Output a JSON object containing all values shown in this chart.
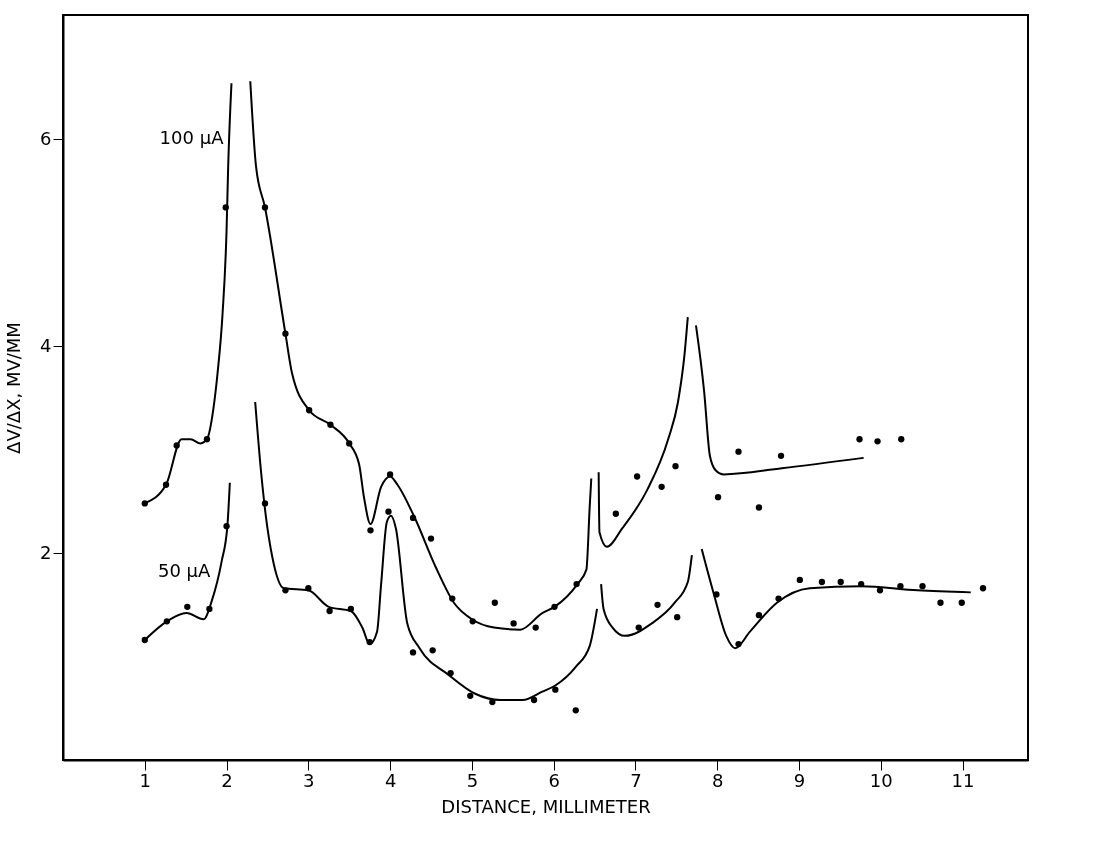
{
  "chart_data": {
    "type": "scatter",
    "xlabel": "DISTANCE, MILLIMETER",
    "ylabel": "ΔV/ΔX, MV/MM",
    "xlim": [
      0,
      11.8
    ],
    "xticks": [
      1,
      2,
      3,
      4,
      5,
      6,
      7,
      8,
      9,
      10,
      11
    ],
    "ylim": [
      0,
      7.2
    ],
    "yticks": [
      2,
      4,
      6
    ],
    "grid": false,
    "annotations": [
      {
        "text": "100 µA",
        "x": 2.06,
        "y": 6.0
      },
      {
        "text": "50 µA",
        "x": 1.9,
        "y": 1.82
      }
    ],
    "series": [
      {
        "marker": "circle",
        "color": "#000000",
        "x": [
          1.0,
          1.26,
          1.39,
          1.76,
          1.99,
          2.47,
          2.72,
          3.01,
          3.27,
          3.5,
          3.76,
          4.0,
          4.28,
          4.5,
          4.76,
          5.01,
          5.28,
          5.51,
          5.78,
          6.01,
          6.28,
          6.76,
          7.02,
          7.32,
          7.49,
          8.01,
          8.26,
          8.51,
          8.78,
          9.74,
          9.96,
          10.25
        ],
        "values": [
          2.48,
          2.66,
          3.04,
          3.1,
          5.34,
          5.34,
          4.12,
          3.38,
          3.24,
          3.06,
          2.22,
          2.76,
          2.34,
          2.14,
          1.56,
          1.34,
          1.52,
          1.32,
          1.28,
          1.48,
          1.7,
          2.38,
          2.74,
          2.64,
          2.84,
          2.54,
          2.98,
          2.44,
          2.94,
          3.1,
          3.08,
          3.1
        ]
      },
      {
        "marker": "circle",
        "color": "#000000",
        "x": [
          1.0,
          1.27,
          1.52,
          1.79,
          2.0,
          2.47,
          2.72,
          3.0,
          3.26,
          3.52,
          3.75,
          3.98,
          4.28,
          4.52,
          4.74,
          4.98,
          5.25,
          5.76,
          6.02,
          6.27,
          7.04,
          7.27,
          7.51,
          7.99,
          8.26,
          8.51,
          8.75,
          9.01,
          9.28,
          9.51,
          9.76,
          9.99,
          10.24,
          10.51,
          10.73,
          10.99,
          11.25
        ],
        "values": [
          1.16,
          1.34,
          1.48,
          1.46,
          2.26,
          2.48,
          1.64,
          1.66,
          1.44,
          1.46,
          1.14,
          2.4,
          1.04,
          1.06,
          0.84,
          0.62,
          0.56,
          0.58,
          0.68,
          0.48,
          1.28,
          1.5,
          1.38,
          1.6,
          1.12,
          1.4,
          1.56,
          1.74,
          1.72,
          1.72,
          1.7,
          1.64,
          1.68,
          1.68,
          1.52,
          1.52,
          1.66
        ]
      },
      {
        "type": "line",
        "marker": "none",
        "line_style": "solid",
        "color": "#000000",
        "x": [
          1.0,
          1.26,
          1.45,
          1.56,
          1.68,
          1.76,
          1.84,
          1.89,
          1.95,
          2.0,
          2.02,
          2.06,
          2.18,
          2.29,
          2.36,
          2.47,
          2.72,
          2.8,
          3.01,
          3.27,
          3.5,
          3.62,
          3.68,
          3.76,
          3.89,
          4.0,
          4.09,
          4.29,
          4.56,
          4.78,
          5.0,
          5.27,
          5.59,
          5.86,
          6.01,
          6.29,
          6.4,
          6.44,
          6.46,
          6.5,
          6.55,
          6.56,
          6.65,
          6.84,
          7.15,
          7.4,
          7.52,
          7.6,
          7.64,
          7.69,
          7.74,
          7.84,
          7.91,
          7.98,
          8.08,
          8.79,
          9.79
        ],
        "values": [
          2.48,
          2.66,
          3.1,
          3.1,
          3.06,
          3.1,
          3.4,
          3.74,
          4.3,
          5.12,
          5.74,
          6.54,
          null,
          6.56,
          5.74,
          5.34,
          4.12,
          3.74,
          3.38,
          3.24,
          3.06,
          2.86,
          2.54,
          2.28,
          2.64,
          2.74,
          2.66,
          2.36,
          1.86,
          1.52,
          1.36,
          1.28,
          1.26,
          1.42,
          1.48,
          1.7,
          1.84,
          2.44,
          2.72,
          null,
          2.78,
          2.2,
          2.06,
          2.24,
          2.62,
          3.1,
          3.46,
          3.92,
          4.28,
          null,
          4.2,
          3.56,
          2.94,
          2.8,
          2.76,
          2.82,
          2.92
        ]
      },
      {
        "type": "line",
        "marker": "none",
        "line_style": "solid",
        "color": "#000000",
        "x": [
          1.0,
          1.27,
          1.51,
          1.72,
          1.82,
          1.94,
          2.01,
          2.04,
          2.2,
          2.35,
          2.42,
          2.48,
          2.56,
          2.7,
          3.0,
          3.25,
          3.52,
          3.66,
          3.75,
          3.84,
          3.89,
          3.96,
          4.01,
          4.07,
          4.21,
          4.36,
          4.72,
          5.04,
          5.35,
          5.62,
          5.86,
          6.02,
          6.27,
          6.44,
          6.53,
          6.55,
          6.58,
          6.61,
          6.72,
          6.87,
          7.2,
          7.48,
          7.64,
          7.69,
          7.75,
          7.81,
          7.96,
          8.11,
          8.22,
          8.4,
          8.73,
          9.13,
          9.76,
          10.45,
          11.1
        ],
        "values": [
          1.16,
          1.34,
          1.42,
          1.36,
          1.54,
          1.92,
          2.26,
          2.68,
          null,
          3.46,
          2.8,
          2.36,
          1.96,
          1.66,
          1.64,
          1.48,
          1.44,
          1.28,
          1.12,
          1.24,
          1.7,
          2.3,
          2.36,
          2.24,
          1.32,
          1.08,
          0.82,
          0.64,
          0.58,
          0.58,
          0.66,
          0.72,
          0.9,
          1.1,
          1.46,
          null,
          1.7,
          1.46,
          1.28,
          1.2,
          1.32,
          1.52,
          1.72,
          1.98,
          null,
          2.04,
          1.6,
          1.2,
          1.08,
          1.24,
          1.52,
          1.66,
          1.68,
          1.64,
          1.62
        ]
      }
    ]
  }
}
